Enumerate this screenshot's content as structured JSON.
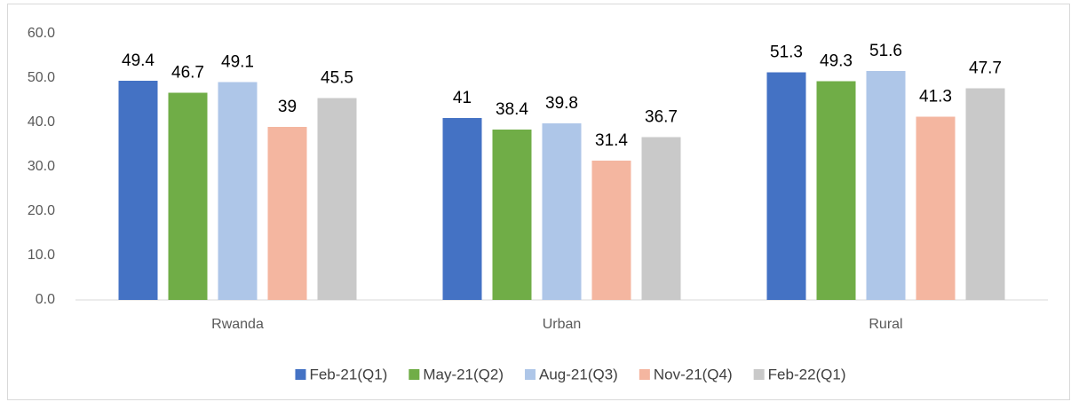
{
  "chart_data": {
    "type": "bar",
    "categories": [
      "Rwanda",
      "Urban",
      "Rural"
    ],
    "series": [
      {
        "name": "Feb-21(Q1)",
        "color": "#4472c4",
        "values": [
          49.4,
          41,
          51.3
        ]
      },
      {
        "name": "May-21(Q2)",
        "color": "#70ad47",
        "values": [
          46.7,
          38.4,
          49.3
        ]
      },
      {
        "name": "Aug-21(Q3)",
        "color": "#aec6e8",
        "values": [
          49.1,
          39.8,
          51.6
        ]
      },
      {
        "name": "Nov-21(Q4)",
        "color": "#f4b6a0",
        "values": [
          39,
          31.4,
          41.3
        ]
      },
      {
        "name": "Feb-22(Q1)",
        "color": "#c9c9c9",
        "values": [
          45.5,
          36.7,
          47.7
        ]
      }
    ],
    "ylim": [
      0,
      60
    ],
    "yticks": [
      {
        "value": 0,
        "label": "0.0"
      },
      {
        "value": 10,
        "label": "10.0"
      },
      {
        "value": 20,
        "label": "20.0"
      },
      {
        "value": 30,
        "label": "30.0"
      },
      {
        "value": 40,
        "label": "40.0"
      },
      {
        "value": 50,
        "label": "50.0"
      },
      {
        "value": 60,
        "label": "60.0"
      }
    ],
    "grid": false,
    "legend": "bottom"
  }
}
